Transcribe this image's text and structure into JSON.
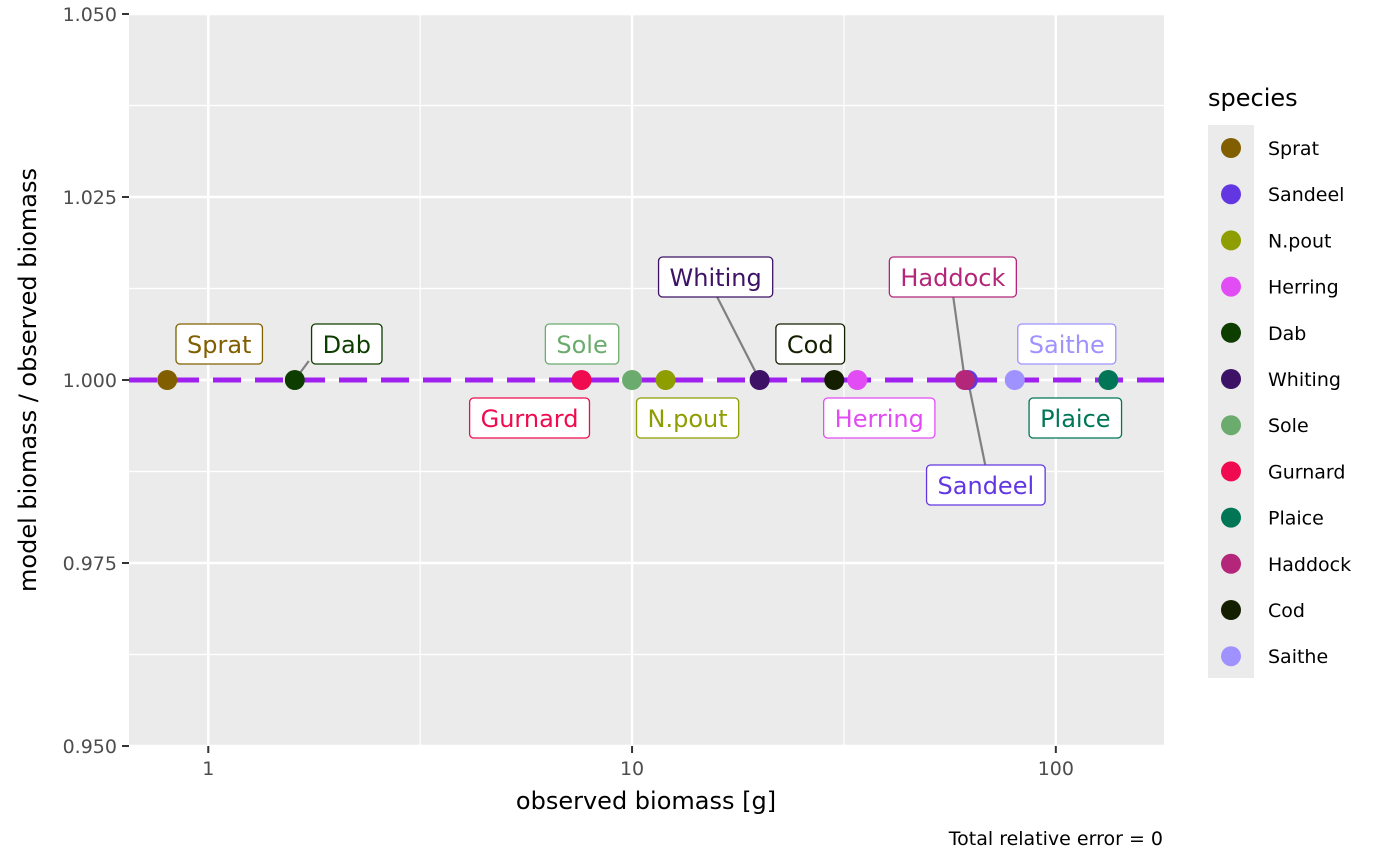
{
  "chart_data": {
    "type": "scatter",
    "xlabel": "observed biomass [g]",
    "ylabel": "model biomass / observed biomass",
    "caption": "Total relative error = 0",
    "x_scale": "log10",
    "x_range": [
      0.65,
      180
    ],
    "y_range": [
      0.95,
      1.05
    ],
    "x_ticks": [
      1,
      10,
      100
    ],
    "x_tick_labels": [
      "1",
      "10",
      "100"
    ],
    "y_ticks": [
      0.95,
      0.975,
      1.0,
      1.025,
      1.05
    ],
    "y_tick_labels": [
      "0.950",
      "0.975",
      "1.000",
      "1.025",
      "1.050"
    ],
    "grid": true,
    "reference_line": {
      "y": 1.0,
      "color": "#A020F0",
      "style": "dashed"
    },
    "legend": {
      "title": "species",
      "position": "right"
    },
    "points": [
      {
        "species": "Sprat",
        "x": 0.8,
        "y": 1.0,
        "color": "#815F00"
      },
      {
        "species": "Sandeel",
        "x": 62,
        "y": 1.0,
        "color": "#6237E1"
      },
      {
        "species": "N.pout",
        "x": 12,
        "y": 1.0,
        "color": "#8E9D00"
      },
      {
        "species": "Herring",
        "x": 34,
        "y": 1.0,
        "color": "#E24CF4"
      },
      {
        "species": "Dab",
        "x": 1.6,
        "y": 1.0,
        "color": "#0E3D00"
      },
      {
        "species": "Whiting",
        "x": 20,
        "y": 1.0,
        "color": "#3D1266"
      },
      {
        "species": "Sole",
        "x": 10,
        "y": 1.0,
        "color": "#6BAB6D"
      },
      {
        "species": "Gurnard",
        "x": 7.6,
        "y": 1.0,
        "color": "#F00A4F"
      },
      {
        "species": "Plaice",
        "x": 133,
        "y": 1.0,
        "color": "#007657"
      },
      {
        "species": "Haddock",
        "x": 61,
        "y": 1.0,
        "color": "#B32679"
      },
      {
        "species": "Cod",
        "x": 30,
        "y": 1.0,
        "color": "#141F00"
      },
      {
        "species": "Saithe",
        "x": 80,
        "y": 1.0,
        "color": "#9F92FF"
      }
    ]
  }
}
